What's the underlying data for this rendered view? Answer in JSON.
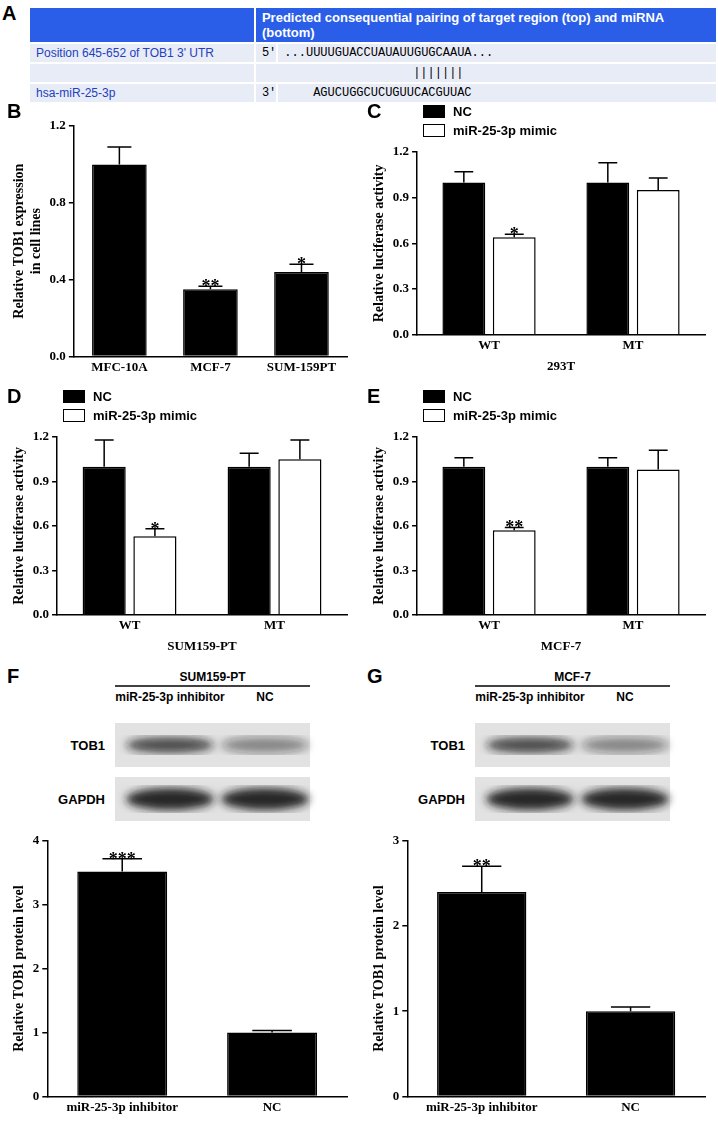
{
  "sequence_table": {
    "panel": "A",
    "header": "Predicted consequential pairing of target region (top) and miRNA (bottom)",
    "rows": [
      {
        "label": "Position 645-652 of TOB1 3' UTR",
        "end": "5'",
        "sequence": "...UUUUGUACCUAUAUUGUGCAAUA..."
      },
      {
        "pairing": "|||||||"
      },
      {
        "label": "hsa-miR-25-3p",
        "end": "3'",
        "sequence": "AGUCUGGCUCUGUUCACGUUAC"
      }
    ]
  },
  "chart_data": [
    {
      "panel": "B",
      "type": "bar",
      "y_label": [
        "Relative TOB1 expression",
        "in cell lines"
      ],
      "categories": [
        "MFC-10A",
        "MCF-7",
        "SUM-159PT"
      ],
      "values": [
        1.0,
        0.35,
        0.44
      ],
      "errors": [
        0.09,
        0.015,
        0.04
      ],
      "annotations": [
        null,
        "**",
        "*"
      ],
      "color": "#000000",
      "ylim": [
        0,
        1.2
      ],
      "yticks": [
        {
          "value": 0,
          "label": "0.0"
        },
        0.4,
        0.8,
        1.2
      ],
      "grid": false
    },
    {
      "panel": "C",
      "type": "bar",
      "y_label": "Relative luciferase activity",
      "x_label": "293T",
      "categories": [
        "WT",
        "MT"
      ],
      "series": [
        {
          "name": "NC",
          "color": "#000000",
          "values": [
            1.0,
            1.0
          ],
          "errors": [
            0.07,
            0.13
          ],
          "annotations": [
            null,
            null
          ]
        },
        {
          "name": "miR-25-3p mimic",
          "color": "#ffffff",
          "values": [
            0.64,
            0.95
          ],
          "errors": [
            0.02,
            0.08
          ],
          "annotations": [
            "*",
            null
          ]
        }
      ],
      "ylim": [
        0,
        1.2
      ],
      "yticks": [
        {
          "value": 0,
          "label": "0.0"
        },
        0.3,
        0.6,
        0.9,
        1.2
      ],
      "legend": "upper left",
      "grid": false
    },
    {
      "panel": "D",
      "type": "bar",
      "y_label": "Relative luciferase activity",
      "x_label": "SUM159-PT",
      "categories": [
        "WT",
        "MT"
      ],
      "series": [
        {
          "name": "NC",
          "color": "#000000",
          "values": [
            1.0,
            1.0
          ],
          "errors": [
            0.18,
            0.09
          ],
          "annotations": [
            null,
            null
          ]
        },
        {
          "name": "miR-25-3p mimic",
          "color": "#ffffff",
          "values": [
            0.53,
            1.05
          ],
          "errors": [
            0.05,
            0.13
          ],
          "annotations": [
            "*",
            null
          ]
        }
      ],
      "ylim": [
        0,
        1.2
      ],
      "yticks": [
        {
          "value": 0,
          "label": "0.0"
        },
        0.3,
        0.6,
        0.9,
        1.2
      ],
      "legend": "upper left",
      "grid": false
    },
    {
      "panel": "E",
      "type": "bar",
      "y_label": "Relative luciferase activity",
      "x_label": "MCF-7",
      "categories": [
        "WT",
        "MT"
      ],
      "series": [
        {
          "name": "NC",
          "color": "#000000",
          "values": [
            1.0,
            1.0
          ],
          "errors": [
            0.06,
            0.06
          ],
          "annotations": [
            null,
            null
          ]
        },
        {
          "name": "miR-25-3p mimic",
          "color": "#ffffff",
          "values": [
            0.57,
            0.98
          ],
          "errors": [
            0.02,
            0.13
          ],
          "annotations": [
            "**",
            null
          ]
        }
      ],
      "ylim": [
        0,
        1.2
      ],
      "yticks": [
        {
          "value": 0,
          "label": "0.0"
        },
        0.3,
        0.6,
        0.9,
        1.2
      ],
      "legend": "upper left",
      "grid": false
    },
    {
      "panel": "F",
      "type": "bar",
      "blot": {
        "cell_line": "SUM159-PT",
        "lanes": [
          "miR-25-3p inhibitor",
          "NC"
        ],
        "proteins": [
          "TOB1",
          "GAPDH"
        ]
      },
      "y_label": "Relative TOB1 protein level",
      "categories": [
        "miR-25-3p inhibitor",
        "NC"
      ],
      "values": [
        3.52,
        1.0
      ],
      "errors": [
        0.2,
        0.03
      ],
      "annotations": [
        "***",
        null
      ],
      "color": "#000000",
      "ylim": [
        0,
        4
      ],
      "yticks": [
        0,
        1,
        2,
        3,
        4
      ],
      "grid": false
    },
    {
      "panel": "G",
      "type": "bar",
      "blot": {
        "cell_line": "MCF-7",
        "lanes": [
          "miR-25-3p inhibitor",
          "NC"
        ],
        "proteins": [
          "TOB1",
          "GAPDH"
        ]
      },
      "y_label": "Relative TOB1 protein level",
      "categories": [
        "miR-25-3p inhibitor",
        "NC"
      ],
      "values": [
        2.4,
        1.0
      ],
      "errors": [
        0.3,
        0.05
      ],
      "annotations": [
        "**",
        null
      ],
      "color": "#000000",
      "ylim": [
        0,
        3
      ],
      "yticks": [
        0,
        1,
        2,
        3
      ],
      "grid": false
    }
  ]
}
